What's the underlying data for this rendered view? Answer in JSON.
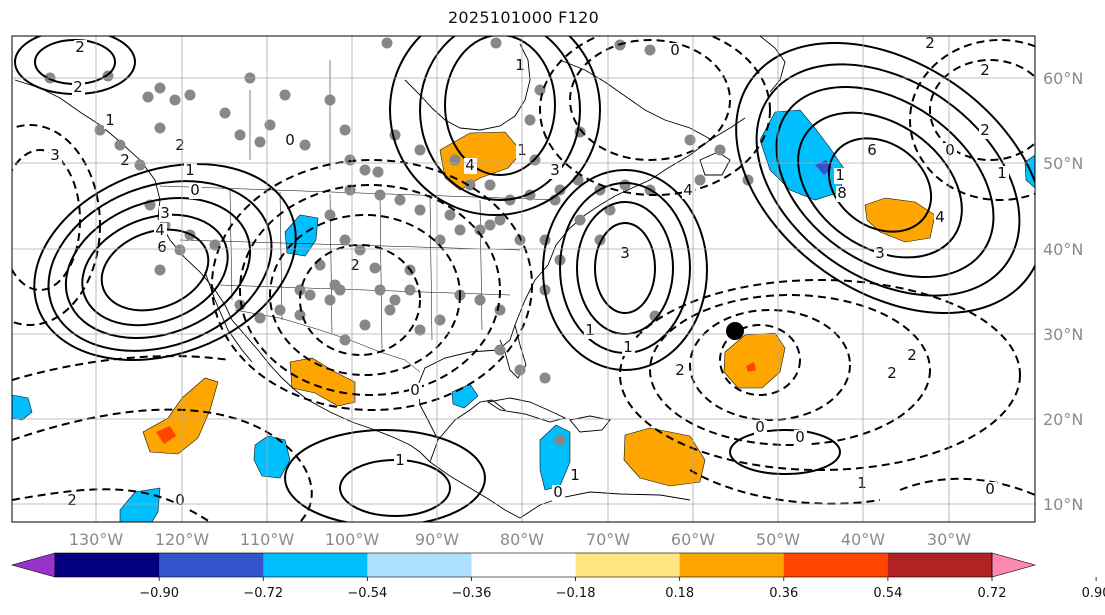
{
  "title": "2025101000 F120",
  "lon_labels": [
    "130°W",
    "120°W",
    "110°W",
    "100°W",
    "90°W",
    "80°W",
    "70°W",
    "60°W",
    "50°W",
    "40°W",
    "30°W"
  ],
  "lat_labels": [
    "60°N",
    "50°N",
    "40°N",
    "30°N",
    "20°N",
    "10°N"
  ],
  "colorbar": {
    "ticks": [
      "−0.90",
      "−0.72",
      "−0.54",
      "−0.36",
      "−0.18",
      "0.18",
      "0.36",
      "0.54",
      "0.72",
      "0.90"
    ],
    "colors": [
      "#9933cc",
      "#000080",
      "#3355cc",
      "#00bfff",
      "#aee0ff",
      "#ffffff",
      "#ffe680",
      "#ffa500",
      "#ff4500",
      "#b22222",
      "#ff88b0"
    ]
  },
  "contour_labels": [
    "2",
    "2",
    "0",
    "1",
    "3",
    "4",
    "6",
    "2",
    "0",
    "3",
    "4",
    "3",
    "3",
    "4",
    "2",
    "1",
    "2",
    "0",
    "1",
    "6",
    "8",
    "4",
    "2",
    "3",
    "2",
    "2",
    "2",
    "1",
    "1",
    "0",
    "0",
    "0",
    "1",
    "2",
    "0",
    "1",
    "1",
    "2",
    "0",
    "2",
    "0",
    "1",
    "1",
    "0",
    "1",
    "2"
  ]
}
